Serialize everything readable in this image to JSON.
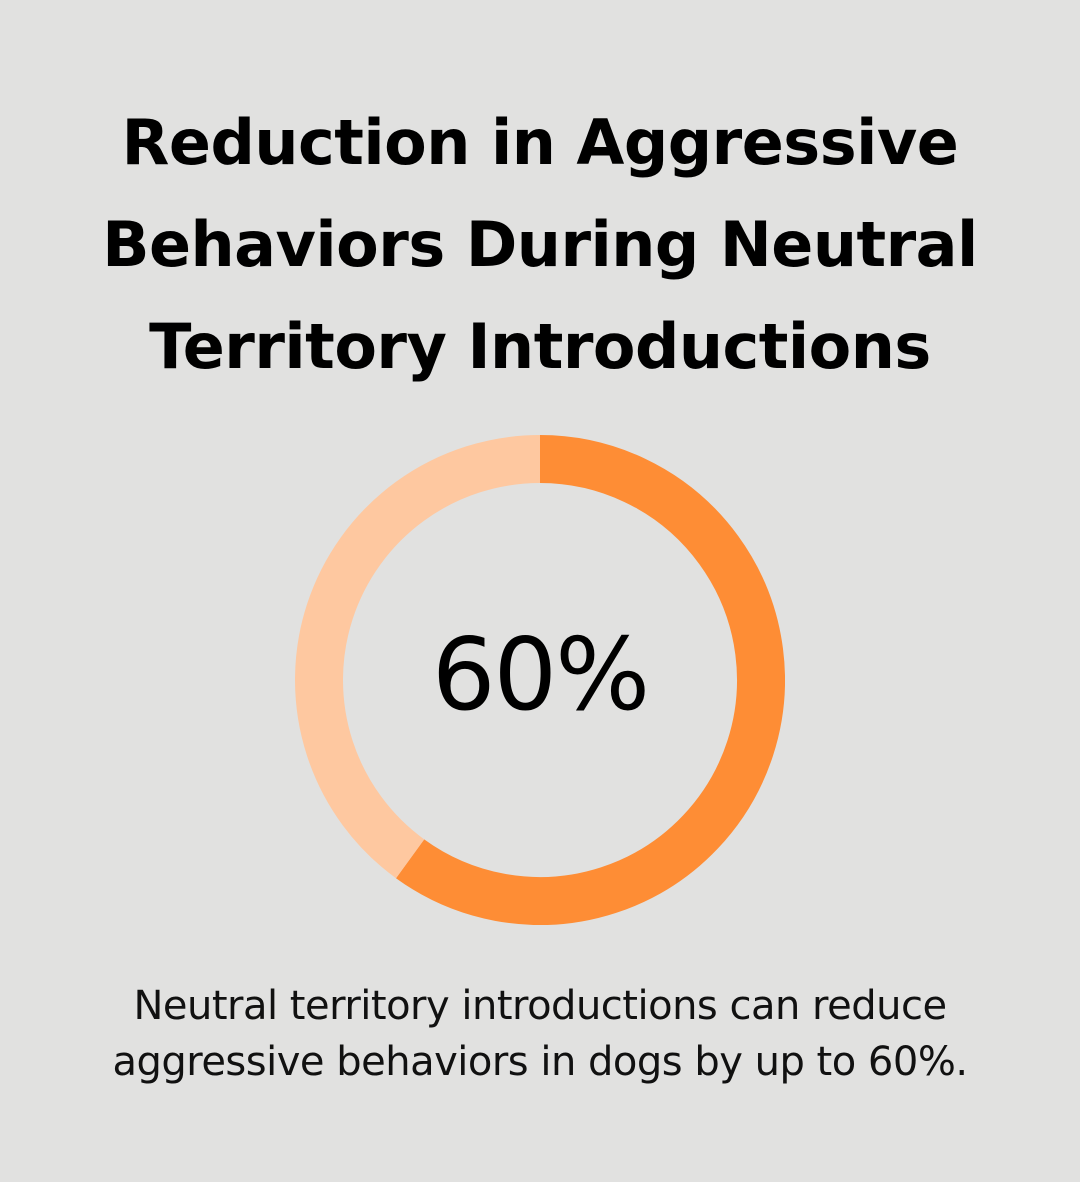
{
  "chart_data": {
    "type": "pie",
    "title": "Reduction in Aggressive Behaviors During Neutral Territory Introductions",
    "title_lines": [
      "Reduction in Aggressive",
      "Behaviors During Neutral",
      "Territory Introductions"
    ],
    "value": 60,
    "value_label": "60%",
    "max": 100,
    "slices": [
      {
        "value": 60,
        "color": "#fe8d35"
      },
      {
        "value": 40,
        "color": "#fec8a0"
      }
    ]
  },
  "caption_lines": [
    "Neutral territory introductions can reduce",
    "aggressive behaviors in dogs by up to 60%."
  ],
  "colors": {
    "background": "#e1e1e0",
    "accent": "#fe8d35",
    "track": "#fec8a0"
  }
}
